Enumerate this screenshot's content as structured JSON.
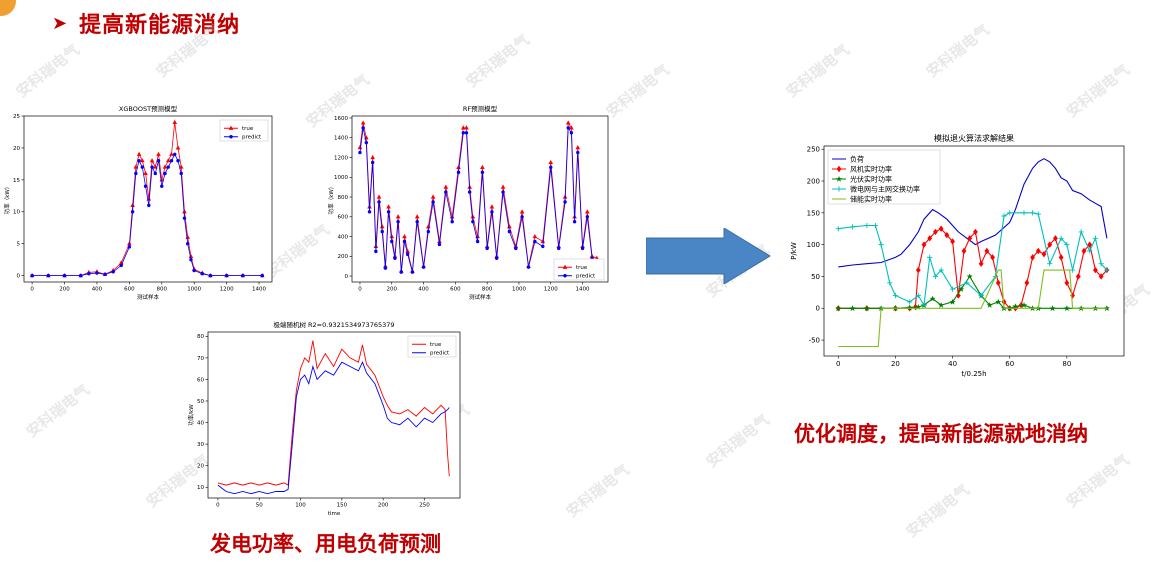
{
  "slide": {
    "title": "提高新能源消纳",
    "caption_left": "发电功率、用电负荷预测",
    "caption_right": "优化调度，提高新能源就地消纳",
    "watermark": "安科瑞电气"
  },
  "colors": {
    "red": "#c00000",
    "arrow": "#4a86c5",
    "true_line": "#ff0000",
    "pred_line": "#0000ff"
  },
  "chart_data": [
    {
      "id": "xgb",
      "type": "line",
      "title": "XGBOOST预测模型",
      "xlabel": "测试样本",
      "ylabel": "功率（kW）",
      "xlim": [
        -50,
        1480
      ],
      "ylim": [
        -1,
        25
      ],
      "xticks": [
        0,
        200,
        400,
        600,
        800,
        1000,
        1200,
        1400
      ],
      "yticks": [
        0,
        5,
        10,
        15,
        20,
        25
      ],
      "legend": "top-right",
      "series": [
        {
          "name": "true",
          "color": "#ff0000",
          "marker": "triangle",
          "x": [
            0,
            100,
            200,
            300,
            350,
            400,
            450,
            500,
            550,
            600,
            620,
            640,
            660,
            680,
            700,
            720,
            740,
            760,
            780,
            800,
            820,
            840,
            860,
            880,
            900,
            920,
            940,
            960,
            980,
            1000,
            1050,
            1100,
            1200,
            1300,
            1420
          ],
          "y": [
            0,
            0,
            0,
            0,
            0.5,
            0.6,
            0.2,
            0.8,
            2,
            5,
            11,
            17,
            19,
            18,
            16,
            12,
            18,
            17,
            19,
            15,
            17,
            18,
            19,
            24,
            20,
            17,
            10,
            6,
            3,
            1,
            0.4,
            0,
            0,
            0,
            0
          ]
        },
        {
          "name": "predict",
          "color": "#0000ff",
          "marker": "circle",
          "x": [
            0,
            100,
            200,
            300,
            350,
            400,
            450,
            500,
            550,
            600,
            620,
            640,
            660,
            680,
            700,
            720,
            740,
            760,
            780,
            800,
            820,
            840,
            860,
            880,
            900,
            920,
            940,
            960,
            980,
            1000,
            1050,
            1100,
            1200,
            1300,
            1420
          ],
          "y": [
            0,
            0,
            0,
            0,
            0.3,
            0.4,
            0.2,
            0.6,
            1.6,
            4.5,
            10,
            16,
            18,
            17,
            14,
            11,
            17,
            16,
            18,
            14,
            16,
            17,
            18,
            19,
            18,
            16,
            9,
            5,
            2.5,
            0.8,
            0.3,
            0,
            0,
            0,
            0
          ]
        }
      ]
    },
    {
      "id": "rf",
      "type": "line",
      "title": "RF预测模型",
      "xlabel": "测试样本",
      "ylabel": "功率（kW）",
      "xlim": [
        -50,
        1560
      ],
      "ylim": [
        -60,
        1620
      ],
      "xticks": [
        0,
        200,
        400,
        600,
        800,
        1000,
        1200,
        1400
      ],
      "yticks": [
        0,
        200,
        400,
        600,
        800,
        1000,
        1200,
        1400,
        1600
      ],
      "legend": "bottom-right",
      "series": [
        {
          "name": "true",
          "color": "#ff0000",
          "marker": "triangle",
          "x": [
            0,
            20,
            40,
            60,
            80,
            100,
            120,
            140,
            160,
            180,
            200,
            220,
            240,
            260,
            280,
            300,
            330,
            360,
            400,
            430,
            460,
            500,
            540,
            580,
            620,
            650,
            670,
            690,
            710,
            740,
            770,
            800,
            830,
            860,
            900,
            940,
            980,
            1020,
            1060,
            1100,
            1150,
            1200,
            1250,
            1290,
            1310,
            1330,
            1350,
            1370,
            1400,
            1430,
            1460,
            1490
          ],
          "y": [
            1300,
            1550,
            1400,
            700,
            1200,
            300,
            800,
            500,
            100,
            700,
            400,
            200,
            600,
            50,
            400,
            250,
            50,
            600,
            100,
            500,
            800,
            350,
            900,
            600,
            1100,
            1500,
            1500,
            900,
            600,
            400,
            1100,
            300,
            700,
            200,
            900,
            500,
            300,
            650,
            100,
            400,
            350,
            1150,
            300,
            800,
            1550,
            1500,
            600,
            1300,
            300,
            650,
            200,
            180
          ]
        },
        {
          "name": "predict",
          "color": "#0000ff",
          "marker": "circle",
          "x": [
            0,
            20,
            40,
            60,
            80,
            100,
            120,
            140,
            160,
            180,
            200,
            220,
            240,
            260,
            280,
            300,
            330,
            360,
            400,
            430,
            460,
            500,
            540,
            580,
            620,
            650,
            670,
            690,
            710,
            740,
            770,
            800,
            830,
            860,
            900,
            940,
            980,
            1020,
            1060,
            1100,
            1150,
            1200,
            1250,
            1290,
            1310,
            1330,
            1350,
            1370,
            1400,
            1430,
            1460,
            1490
          ],
          "y": [
            1250,
            1500,
            1350,
            650,
            1150,
            250,
            750,
            450,
            80,
            650,
            350,
            180,
            550,
            40,
            350,
            220,
            40,
            550,
            90,
            450,
            750,
            320,
            850,
            550,
            1050,
            1450,
            1450,
            850,
            550,
            350,
            1050,
            280,
            650,
            180,
            850,
            450,
            280,
            600,
            90,
            350,
            300,
            1100,
            280,
            750,
            1500,
            1450,
            550,
            1250,
            280,
            600,
            180,
            160
          ]
        }
      ]
    },
    {
      "id": "elm",
      "type": "line",
      "title": "极端随机树 R2=0.9321534973765379",
      "xlabel": "time",
      "ylabel": "功率/kW",
      "xlim": [
        -12,
        293
      ],
      "ylim": [
        5,
        82
      ],
      "xticks": [
        0,
        50,
        100,
        150,
        200,
        250
      ],
      "yticks": [
        10,
        20,
        30,
        40,
        50,
        60,
        70,
        80
      ],
      "legend": "top-right",
      "series": [
        {
          "name": "true",
          "color": "#ff0000",
          "x": [
            0,
            10,
            20,
            30,
            40,
            50,
            60,
            70,
            80,
            85,
            90,
            95,
            100,
            105,
            110,
            115,
            120,
            130,
            140,
            150,
            160,
            170,
            175,
            180,
            190,
            200,
            205,
            210,
            220,
            230,
            240,
            250,
            260,
            270,
            275,
            278,
            280
          ],
          "y": [
            12,
            11,
            12,
            11,
            12,
            11,
            12,
            11,
            12,
            11,
            35,
            55,
            65,
            70,
            68,
            78,
            65,
            72,
            66,
            74,
            70,
            68,
            76,
            67,
            62,
            52,
            48,
            45,
            44,
            46,
            43,
            47,
            44,
            48,
            46,
            25,
            15
          ]
        },
        {
          "name": "predict",
          "color": "#0000ff",
          "x": [
            0,
            10,
            20,
            30,
            40,
            50,
            60,
            70,
            80,
            85,
            90,
            95,
            100,
            105,
            110,
            115,
            120,
            130,
            140,
            150,
            160,
            170,
            175,
            180,
            190,
            200,
            205,
            210,
            220,
            230,
            240,
            250,
            260,
            270,
            275,
            278,
            280
          ],
          "y": [
            11,
            8,
            7,
            8,
            7,
            8,
            7,
            8,
            8,
            9,
            30,
            52,
            60,
            62,
            58,
            66,
            60,
            64,
            62,
            68,
            66,
            64,
            68,
            63,
            58,
            48,
            42,
            40,
            39,
            42,
            38,
            42,
            40,
            44,
            45,
            46,
            47
          ]
        }
      ]
    },
    {
      "id": "sa",
      "type": "line",
      "title": "模拟退火算法求解结果",
      "xlabel": "t/0.25h",
      "ylabel": "P/kW",
      "xlim": [
        -5,
        100
      ],
      "ylim": [
        -75,
        255
      ],
      "xticks": [
        0,
        20,
        40,
        60,
        80
      ],
      "yticks": [
        -50,
        0,
        50,
        100,
        150,
        200,
        250
      ],
      "legend": "top-left",
      "series": [
        {
          "name": "负荷",
          "color": "#0000cc",
          "x": [
            0,
            5,
            10,
            15,
            20,
            22,
            25,
            28,
            30,
            33,
            35,
            38,
            40,
            42,
            45,
            48,
            50,
            55,
            60,
            62,
            65,
            68,
            70,
            72,
            74,
            76,
            78,
            80,
            82,
            85,
            88,
            90,
            92,
            94
          ],
          "y": [
            65,
            68,
            70,
            72,
            80,
            85,
            100,
            120,
            140,
            155,
            150,
            140,
            130,
            120,
            110,
            100,
            105,
            115,
            135,
            155,
            195,
            220,
            230,
            235,
            230,
            220,
            205,
            200,
            185,
            180,
            170,
            165,
            160,
            110
          ]
        },
        {
          "name": "风机实时功率",
          "color": "#ff0000",
          "marker": "diamond",
          "x": [
            0,
            10,
            20,
            25,
            27,
            28,
            30,
            32,
            34,
            36,
            38,
            40,
            42,
            44,
            46,
            48,
            50,
            52,
            54,
            56,
            58,
            60,
            62,
            64,
            66,
            68,
            70,
            72,
            74,
            76,
            78,
            80,
            82,
            84,
            86,
            88,
            90,
            92,
            94
          ],
          "y": [
            0,
            0,
            0,
            0,
            2,
            60,
            100,
            110,
            120,
            125,
            115,
            105,
            20,
            90,
            110,
            120,
            70,
            90,
            80,
            40,
            10,
            0,
            0,
            5,
            40,
            80,
            90,
            85,
            100,
            110,
            80,
            40,
            20,
            50,
            90,
            100,
            60,
            50,
            60
          ]
        },
        {
          "name": "光伏实时功率",
          "color": "#008000",
          "marker": "star",
          "x": [
            0,
            5,
            10,
            15,
            20,
            25,
            28,
            30,
            33,
            36,
            40,
            43,
            46,
            50,
            53,
            56,
            58,
            60,
            62,
            65,
            68,
            70,
            75,
            80,
            85,
            90,
            94
          ],
          "y": [
            0,
            0,
            0,
            0,
            0,
            1,
            2,
            5,
            15,
            5,
            10,
            30,
            50,
            20,
            5,
            10,
            0,
            0,
            3,
            5,
            0,
            0,
            0,
            0,
            0,
            0,
            0
          ]
        },
        {
          "name": "微电网与主网交换功率",
          "color": "#00bfbf",
          "marker": "plus",
          "x": [
            0,
            5,
            10,
            13,
            15,
            18,
            20,
            25,
            28,
            30,
            32,
            34,
            36,
            40,
            45,
            50,
            55,
            58,
            60,
            65,
            68,
            70,
            74,
            78,
            80,
            82,
            85,
            88,
            90,
            92,
            94
          ],
          "y": [
            125,
            128,
            130,
            130,
            100,
            40,
            20,
            10,
            20,
            5,
            80,
            50,
            60,
            30,
            40,
            20,
            50,
            145,
            150,
            150,
            150,
            148,
            70,
            110,
            100,
            60,
            120,
            90,
            110,
            70,
            60
          ]
        },
        {
          "name": "储能实时功率",
          "color": "#7fbf20",
          "x": [
            0,
            14,
            15,
            20,
            40,
            50,
            56,
            57,
            58,
            62,
            66,
            70,
            72,
            78,
            81,
            82,
            94
          ],
          "y": [
            -60,
            -60,
            0,
            0,
            0,
            0,
            60,
            60,
            0,
            0,
            0,
            0,
            60,
            60,
            60,
            0,
            0
          ]
        }
      ]
    }
  ]
}
